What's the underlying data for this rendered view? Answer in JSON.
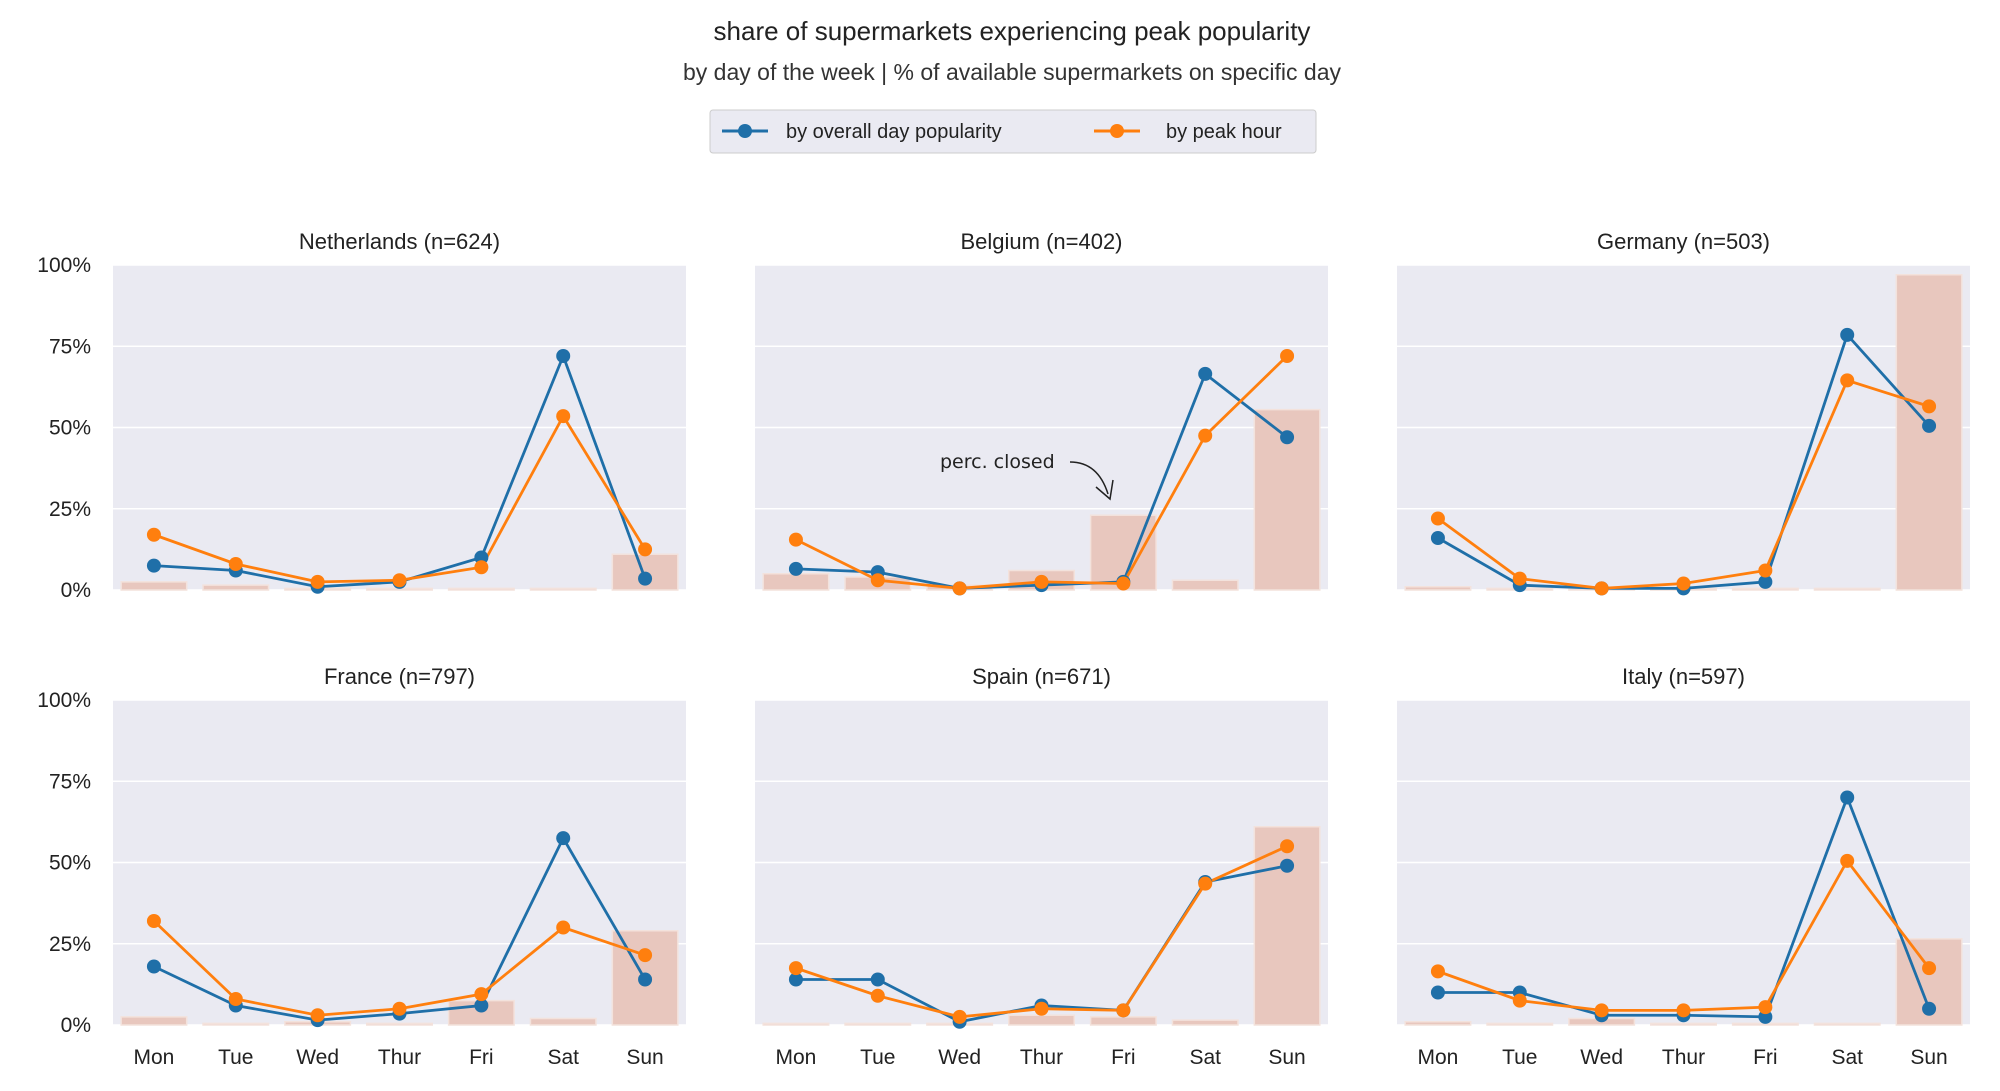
{
  "title": "share of supermarkets experiencing peak popularity",
  "subtitle": "by day of the week | % of available supermarkets on specific day",
  "colors": {
    "overall": "#1f6fa8",
    "peak": "#ff7f0e",
    "closed": "#e8c7be",
    "panel_bg": "#eaeaf2",
    "grid": "#ffffff"
  },
  "legend": {
    "overall": "by overall day popularity",
    "peak": "by peak hour",
    "placement": "top-center"
  },
  "annotation": {
    "text": "perc. closed",
    "panel": "Belgium (n=402)"
  },
  "chart_data": [
    {
      "type": "line",
      "title": "Netherlands (n=624)",
      "categories": [
        "Mon",
        "Tue",
        "Wed",
        "Thur",
        "Fri",
        "Sat",
        "Sun"
      ],
      "ylim": [
        0,
        100
      ],
      "yticks": [
        "0%",
        "25%",
        "50%",
        "75%",
        "100%"
      ],
      "series": [
        {
          "name": "by overall day popularity",
          "values": [
            7.5,
            6,
            1,
            2.5,
            10,
            72,
            3.5
          ]
        },
        {
          "name": "by peak hour",
          "values": [
            17,
            8,
            2.5,
            3,
            7,
            53.5,
            12.5
          ]
        }
      ],
      "closed": [
        2.5,
        1.5,
        0.5,
        0.5,
        0.5,
        0.5,
        11
      ]
    },
    {
      "type": "line",
      "title": "Belgium (n=402)",
      "categories": [
        "Mon",
        "Tue",
        "Wed",
        "Thur",
        "Fri",
        "Sat",
        "Sun"
      ],
      "ylim": [
        0,
        100
      ],
      "yticks": [
        "0%",
        "25%",
        "50%",
        "75%",
        "100%"
      ],
      "series": [
        {
          "name": "by overall day popularity",
          "values": [
            6.5,
            5.5,
            0.5,
            1.5,
            2.5,
            66.5,
            47
          ]
        },
        {
          "name": "by peak hour",
          "values": [
            15.5,
            3,
            0.5,
            2.5,
            2,
            47.5,
            72
          ]
        }
      ],
      "closed": [
        5,
        4,
        1.5,
        6,
        23,
        3,
        55.5
      ]
    },
    {
      "type": "line",
      "title": "Germany (n=503)",
      "categories": [
        "Mon",
        "Tue",
        "Wed",
        "Thur",
        "Fri",
        "Sat",
        "Sun"
      ],
      "ylim": [
        0,
        100
      ],
      "yticks": [
        "0%",
        "25%",
        "50%",
        "75%",
        "100%"
      ],
      "series": [
        {
          "name": "by overall day popularity",
          "values": [
            16,
            1.5,
            0.5,
            0.5,
            2.5,
            78.5,
            50.5
          ]
        },
        {
          "name": "by peak hour",
          "values": [
            22,
            3.5,
            0.5,
            2,
            6,
            64.5,
            56.5
          ]
        }
      ],
      "closed": [
        1,
        0.5,
        0.5,
        0.5,
        0.5,
        0.5,
        97
      ]
    },
    {
      "type": "line",
      "title": "France (n=797)",
      "categories": [
        "Mon",
        "Tue",
        "Wed",
        "Thur",
        "Fri",
        "Sat",
        "Sun"
      ],
      "ylim": [
        0,
        100
      ],
      "yticks": [
        "0%",
        "25%",
        "50%",
        "75%",
        "100%"
      ],
      "series": [
        {
          "name": "by overall day popularity",
          "values": [
            18,
            6,
            1.5,
            3.5,
            6,
            57.5,
            14
          ]
        },
        {
          "name": "by peak hour",
          "values": [
            32,
            8,
            3,
            5,
            9.5,
            30,
            21.5
          ]
        }
      ],
      "closed": [
        2.5,
        0.5,
        1,
        0.5,
        7.5,
        2,
        29
      ]
    },
    {
      "type": "line",
      "title": "Spain (n=671)",
      "categories": [
        "Mon",
        "Tue",
        "Wed",
        "Thur",
        "Fri",
        "Sat",
        "Sun"
      ],
      "ylim": [
        0,
        100
      ],
      "yticks": [
        "0%",
        "25%",
        "50%",
        "75%",
        "100%"
      ],
      "series": [
        {
          "name": "by overall day popularity",
          "values": [
            14,
            14,
            1,
            6,
            4.5,
            44,
            49
          ]
        },
        {
          "name": "by peak hour",
          "values": [
            17.5,
            9,
            2.5,
            5,
            4.5,
            43.5,
            55
          ]
        }
      ],
      "closed": [
        0.5,
        0.5,
        0.5,
        3,
        2.5,
        1.5,
        61
      ]
    },
    {
      "type": "line",
      "title": "Italy (n=597)",
      "categories": [
        "Mon",
        "Tue",
        "Wed",
        "Thur",
        "Fri",
        "Sat",
        "Sun"
      ],
      "ylim": [
        0,
        100
      ],
      "yticks": [
        "0%",
        "25%",
        "50%",
        "75%",
        "100%"
      ],
      "series": [
        {
          "name": "by overall day popularity",
          "values": [
            10,
            10,
            3,
            3,
            2.5,
            70,
            5
          ]
        },
        {
          "name": "by peak hour",
          "values": [
            16.5,
            7.5,
            4.5,
            4.5,
            5.5,
            50.5,
            17.5
          ]
        }
      ],
      "closed": [
        1,
        0.5,
        2,
        0.5,
        0.5,
        0.5,
        26.5
      ]
    }
  ]
}
